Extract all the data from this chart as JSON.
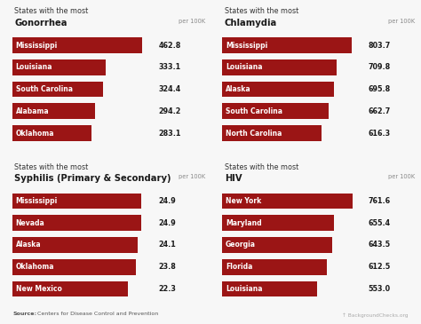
{
  "background_color": "#f7f7f7",
  "bar_color": "#9b1515",
  "text_color": "#1a1a1a",
  "label_color": "#ffffff",
  "subtitle_color": "#333333",
  "unit_color": "#888888",
  "source_color": "#555555",
  "watermark_color": "#aaaaaa",
  "panels": [
    {
      "subtitle": "States with the most",
      "title": "Gonorrhea",
      "title_bold": true,
      "unit": "per 100K",
      "max_val": 500,
      "states": [
        "Mississippi",
        "Louisiana",
        "South Carolina",
        "Alabama",
        "Oklahoma"
      ],
      "values": [
        462.8,
        333.1,
        324.4,
        294.2,
        283.1
      ]
    },
    {
      "subtitle": "States with the most",
      "title": "Chlamydia",
      "title_bold": true,
      "unit": "per 100K",
      "max_val": 870,
      "states": [
        "Mississippi",
        "Louisiana",
        "Alaska",
        "South Carolina",
        "North Carolina"
      ],
      "values": [
        803.7,
        709.8,
        695.8,
        662.7,
        616.3
      ]
    },
    {
      "subtitle": "States with the most",
      "title": "Syphilis (Primary & Secondary)",
      "title_bold": true,
      "unit": "per 100K",
      "max_val": 27,
      "states": [
        "Mississippi",
        "Nevada",
        "Alaska",
        "Oklahoma",
        "New Mexico"
      ],
      "values": [
        24.9,
        24.9,
        24.1,
        23.8,
        22.3
      ]
    },
    {
      "subtitle": "States with the most",
      "title": "HIV",
      "title_bold": true,
      "unit": "per 100K",
      "max_val": 820,
      "states": [
        "New York",
        "Maryland",
        "Georgia",
        "Florida",
        "Louisiana"
      ],
      "values": [
        761.6,
        655.4,
        643.5,
        612.5,
        553.0
      ]
    }
  ],
  "source_bold": "Source:",
  "source_rest": " Centers for Disease Control and Prevention",
  "watermark": "↑ BackgroundChecks.org"
}
